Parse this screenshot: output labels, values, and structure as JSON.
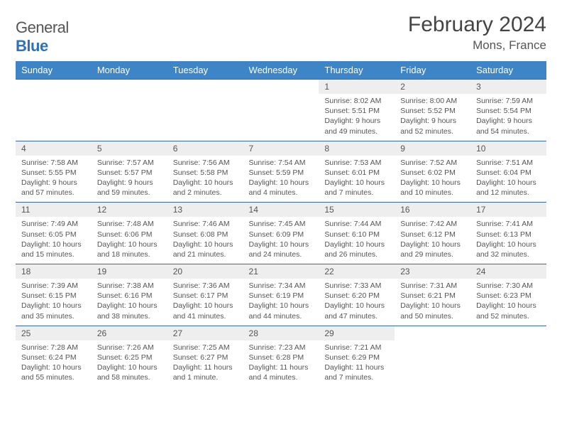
{
  "logo": {
    "text1": "General",
    "text2": "Blue"
  },
  "title": "February 2024",
  "location": "Mons, France",
  "colors": {
    "header_bg": "#3d85c6",
    "header_text": "#ffffff",
    "daynum_bg": "#eeeeee",
    "border": "#3d6a9c",
    "text": "#555555",
    "logo_blue": "#2d72b8"
  },
  "dayHeaders": [
    "Sunday",
    "Monday",
    "Tuesday",
    "Wednesday",
    "Thursday",
    "Friday",
    "Saturday"
  ],
  "weeks": [
    {
      "nums": [
        "",
        "",
        "",
        "",
        "1",
        "2",
        "3"
      ],
      "cells": [
        "",
        "",
        "",
        "",
        "Sunrise: 8:02 AM\nSunset: 5:51 PM\nDaylight: 9 hours and 49 minutes.",
        "Sunrise: 8:00 AM\nSunset: 5:52 PM\nDaylight: 9 hours and 52 minutes.",
        "Sunrise: 7:59 AM\nSunset: 5:54 PM\nDaylight: 9 hours and 54 minutes."
      ]
    },
    {
      "nums": [
        "4",
        "5",
        "6",
        "7",
        "8",
        "9",
        "10"
      ],
      "cells": [
        "Sunrise: 7:58 AM\nSunset: 5:55 PM\nDaylight: 9 hours and 57 minutes.",
        "Sunrise: 7:57 AM\nSunset: 5:57 PM\nDaylight: 9 hours and 59 minutes.",
        "Sunrise: 7:56 AM\nSunset: 5:58 PM\nDaylight: 10 hours and 2 minutes.",
        "Sunrise: 7:54 AM\nSunset: 5:59 PM\nDaylight: 10 hours and 4 minutes.",
        "Sunrise: 7:53 AM\nSunset: 6:01 PM\nDaylight: 10 hours and 7 minutes.",
        "Sunrise: 7:52 AM\nSunset: 6:02 PM\nDaylight: 10 hours and 10 minutes.",
        "Sunrise: 7:51 AM\nSunset: 6:04 PM\nDaylight: 10 hours and 12 minutes."
      ]
    },
    {
      "nums": [
        "11",
        "12",
        "13",
        "14",
        "15",
        "16",
        "17"
      ],
      "cells": [
        "Sunrise: 7:49 AM\nSunset: 6:05 PM\nDaylight: 10 hours and 15 minutes.",
        "Sunrise: 7:48 AM\nSunset: 6:06 PM\nDaylight: 10 hours and 18 minutes.",
        "Sunrise: 7:46 AM\nSunset: 6:08 PM\nDaylight: 10 hours and 21 minutes.",
        "Sunrise: 7:45 AM\nSunset: 6:09 PM\nDaylight: 10 hours and 24 minutes.",
        "Sunrise: 7:44 AM\nSunset: 6:10 PM\nDaylight: 10 hours and 26 minutes.",
        "Sunrise: 7:42 AM\nSunset: 6:12 PM\nDaylight: 10 hours and 29 minutes.",
        "Sunrise: 7:41 AM\nSunset: 6:13 PM\nDaylight: 10 hours and 32 minutes."
      ]
    },
    {
      "nums": [
        "18",
        "19",
        "20",
        "21",
        "22",
        "23",
        "24"
      ],
      "cells": [
        "Sunrise: 7:39 AM\nSunset: 6:15 PM\nDaylight: 10 hours and 35 minutes.",
        "Sunrise: 7:38 AM\nSunset: 6:16 PM\nDaylight: 10 hours and 38 minutes.",
        "Sunrise: 7:36 AM\nSunset: 6:17 PM\nDaylight: 10 hours and 41 minutes.",
        "Sunrise: 7:34 AM\nSunset: 6:19 PM\nDaylight: 10 hours and 44 minutes.",
        "Sunrise: 7:33 AM\nSunset: 6:20 PM\nDaylight: 10 hours and 47 minutes.",
        "Sunrise: 7:31 AM\nSunset: 6:21 PM\nDaylight: 10 hours and 50 minutes.",
        "Sunrise: 7:30 AM\nSunset: 6:23 PM\nDaylight: 10 hours and 52 minutes."
      ]
    },
    {
      "nums": [
        "25",
        "26",
        "27",
        "28",
        "29",
        "",
        ""
      ],
      "cells": [
        "Sunrise: 7:28 AM\nSunset: 6:24 PM\nDaylight: 10 hours and 55 minutes.",
        "Sunrise: 7:26 AM\nSunset: 6:25 PM\nDaylight: 10 hours and 58 minutes.",
        "Sunrise: 7:25 AM\nSunset: 6:27 PM\nDaylight: 11 hours and 1 minute.",
        "Sunrise: 7:23 AM\nSunset: 6:28 PM\nDaylight: 11 hours and 4 minutes.",
        "Sunrise: 7:21 AM\nSunset: 6:29 PM\nDaylight: 11 hours and 7 minutes.",
        "",
        ""
      ]
    }
  ]
}
